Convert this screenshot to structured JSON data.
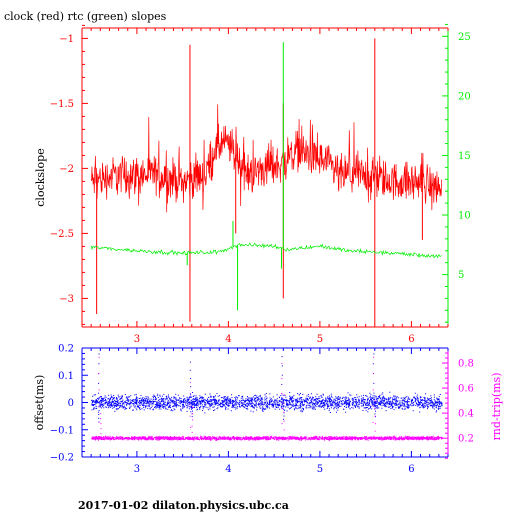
{
  "title": "clock (red) rtc (green) slopes",
  "footer": "2017-01-02 dilaton.physics.ubc.ca",
  "colors": {
    "clock": "#ff0000",
    "rtc": "#00ee00",
    "offset": "#0000ff",
    "rndtrip": "#ff00ff",
    "axis": "#000000"
  },
  "chart_data": [
    {
      "type": "line",
      "title": "clock (red) rtc (green) slopes",
      "xlabel": "",
      "ylabel": "clockslope",
      "y2label": "",
      "xlim": [
        2.4,
        6.4
      ],
      "ylim": [
        -3.22,
        -0.92
      ],
      "y2lim": [
        0.6,
        25.7
      ],
      "x_ticks": [
        3,
        4,
        5,
        6
      ],
      "y_ticks": [
        -1,
        -1.5,
        -2,
        -2.5,
        -3
      ],
      "y_tick_labels": [
        "−1",
        "−1.5",
        "−2",
        "−2.5",
        "−3"
      ],
      "y2_ticks": [
        5,
        10,
        15,
        20,
        25
      ],
      "x_range_data": [
        2.5,
        6.33
      ],
      "series": [
        {
          "name": "clock",
          "axis": "left",
          "baseline": [
            [
              2.5,
              -2.1
            ],
            [
              2.8,
              -2.05
            ],
            [
              3.2,
              -2.05
            ],
            [
              3.5,
              -2.1
            ],
            [
              3.75,
              -2.05
            ],
            [
              3.85,
              -1.85
            ],
            [
              3.95,
              -1.8
            ],
            [
              4.05,
              -1.85
            ],
            [
              4.2,
              -2.05
            ],
            [
              4.4,
              -2.0
            ],
            [
              4.6,
              -1.95
            ],
            [
              4.75,
              -1.85
            ],
            [
              4.9,
              -1.9
            ],
            [
              5.05,
              -1.95
            ],
            [
              5.2,
              -2.05
            ],
            [
              5.5,
              -2.05
            ],
            [
              5.8,
              -2.1
            ],
            [
              6.1,
              -2.1
            ],
            [
              6.33,
              -2.15
            ]
          ],
          "noise": 0.22,
          "spikes": [
            [
              2.56,
              -3.12
            ],
            [
              3.58,
              -3.18
            ],
            [
              3.58,
              -1.05
            ],
            [
              4.6,
              -3.0
            ],
            [
              4.6,
              -1.5
            ],
            [
              5.6,
              -1.0
            ],
            [
              5.6,
              -3.2
            ],
            [
              4.08,
              -2.5
            ],
            [
              6.12,
              -2.55
            ]
          ]
        },
        {
          "name": "rtc",
          "axis": "right",
          "baseline": [
            [
              2.5,
              7.3
            ],
            [
              3.0,
              7.0
            ],
            [
              3.5,
              6.8
            ],
            [
              3.9,
              6.9
            ],
            [
              4.1,
              7.5
            ],
            [
              4.5,
              7.4
            ],
            [
              4.65,
              7.1
            ],
            [
              5.0,
              7.4
            ],
            [
              5.3,
              7.0
            ],
            [
              5.8,
              6.8
            ],
            [
              6.33,
              6.5
            ]
          ],
          "noise": 0.25,
          "spikes": [
            [
              4.6,
              24.5
            ],
            [
              4.1,
              2.0
            ],
            [
              3.55,
              5.8
            ],
            [
              4.58,
              5.5
            ],
            [
              4.05,
              9.5
            ]
          ]
        }
      ]
    },
    {
      "type": "scatter",
      "title": "",
      "xlabel": "",
      "ylabel": "offset(ms)",
      "y2label": "rnd-trip(ms)",
      "xlim": [
        2.4,
        6.4
      ],
      "ylim": [
        -0.2,
        0.2
      ],
      "y2lim": [
        0.05,
        0.92
      ],
      "x_ticks": [
        3,
        4,
        5,
        6
      ],
      "y_ticks": [
        0.2,
        0.1,
        0,
        -0.1,
        -0.2
      ],
      "y_tick_labels": [
        "0.2",
        "0.1",
        "0",
        "−0.1",
        "−0.2"
      ],
      "y2_ticks": [
        0.2,
        0.4,
        0.6,
        0.8
      ],
      "x_range_data": [
        2.5,
        6.33
      ],
      "series": [
        {
          "name": "offset",
          "axis": "left",
          "center": 0.0,
          "spread": 0.025,
          "outliers": [
            [
              2.58,
              0.18
            ],
            [
              3.58,
              0.15
            ],
            [
              4.58,
              0.17
            ],
            [
              5.58,
              0.18
            ],
            [
              2.58,
              -0.07
            ],
            [
              3.6,
              -0.05
            ],
            [
              4.6,
              -0.06
            ],
            [
              5.6,
              -0.05
            ]
          ]
        },
        {
          "name": "rndtrip",
          "axis": "right",
          "center": 0.2,
          "spread": 0.012,
          "outliers": [
            [
              2.58,
              0.85
            ],
            [
              3.58,
              0.65
            ],
            [
              4.58,
              0.8
            ],
            [
              5.58,
              0.85
            ],
            [
              2.6,
              0.4
            ],
            [
              3.6,
              0.45
            ],
            [
              4.6,
              0.55
            ],
            [
              5.6,
              0.5
            ]
          ]
        }
      ]
    }
  ]
}
